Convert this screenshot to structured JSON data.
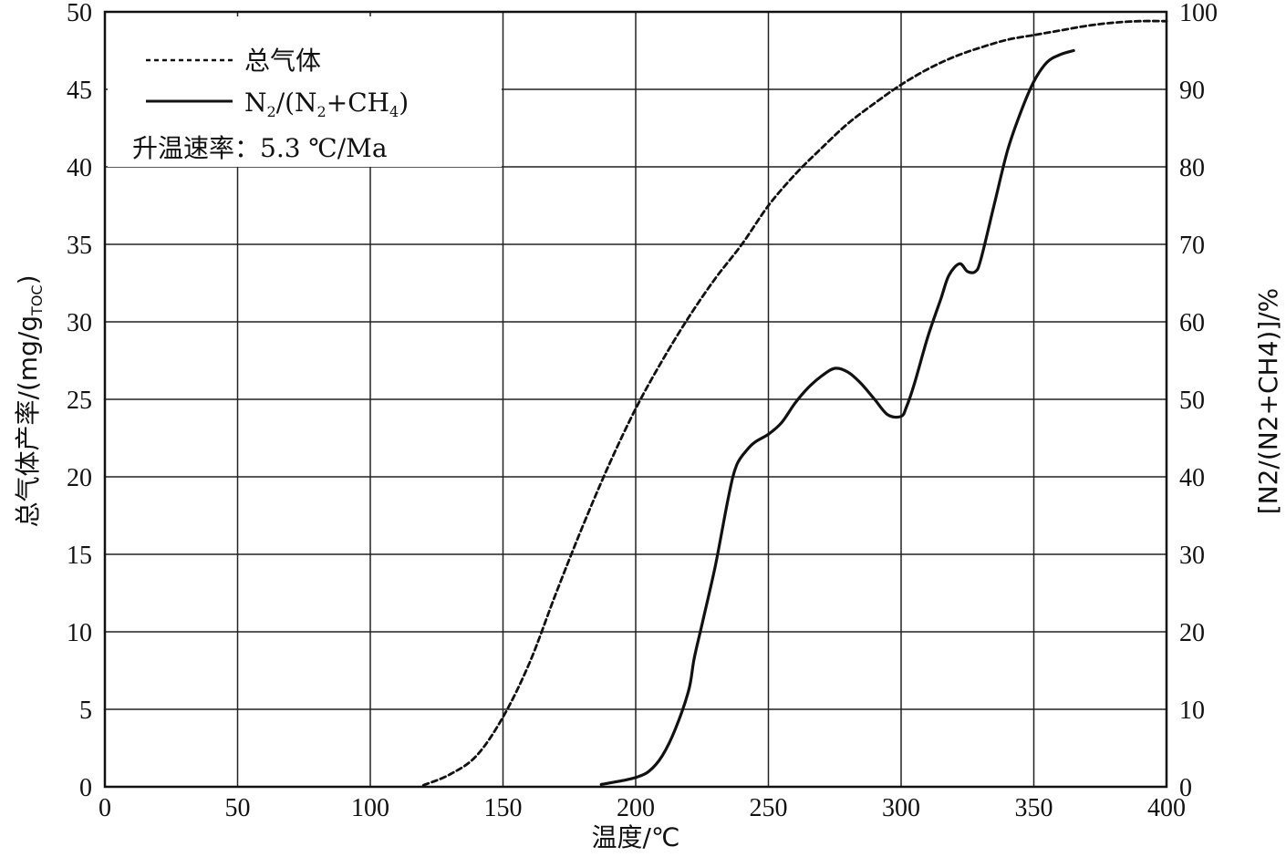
{
  "chart_data": {
    "type": "line",
    "xlabel": "温度/℃",
    "ylabel_left": "总气体产率/(mg/gTOC)",
    "ylabel_left_main": "总气体产率/(mg/g",
    "ylabel_left_sub": "TOC",
    "ylabel_left_close": ")",
    "ylabel_right": "[N2/(N2+CH4)]/%",
    "xlim": [
      0,
      400
    ],
    "ylim_left": [
      0,
      50
    ],
    "ylim_right": [
      0,
      100
    ],
    "x_ticks": [
      0,
      50,
      100,
      150,
      200,
      250,
      300,
      350,
      400
    ],
    "y_left_ticks": [
      0,
      5,
      10,
      15,
      20,
      25,
      30,
      35,
      40,
      45,
      50
    ],
    "y_right_ticks": [
      0,
      10,
      20,
      30,
      40,
      50,
      60,
      70,
      80,
      90,
      100
    ],
    "grid": true,
    "legend_position": "top-left",
    "annotation": "升温速率：5.3 ℃/Ma",
    "series": [
      {
        "name": "总气体",
        "axis": "left",
        "style": "dashed",
        "x": [
          120,
          130,
          140,
          150,
          160,
          170,
          180,
          190,
          200,
          210,
          220,
          230,
          240,
          250,
          260,
          270,
          280,
          290,
          300,
          310,
          320,
          330,
          340,
          350,
          360,
          370,
          380,
          390,
          400
        ],
        "y": [
          0.1,
          0.8,
          2.0,
          4.5,
          8.0,
          12.5,
          16.8,
          20.8,
          24.4,
          27.5,
          30.3,
          32.8,
          35.0,
          37.5,
          39.5,
          41.2,
          42.8,
          44.1,
          45.3,
          46.3,
          47.1,
          47.7,
          48.2,
          48.5,
          48.8,
          49.1,
          49.3,
          49.4,
          49.4
        ]
      },
      {
        "name": "N2/(N2+CH4)",
        "legend_label": {
          "n1": "N",
          "s1": "2",
          "mid": "/(N",
          "s2": "2",
          "mid2": "+CH",
          "s3": "4",
          "end": ")"
        },
        "axis": "right",
        "style": "solid",
        "x": [
          187,
          195,
          200,
          205,
          210,
          215,
          220,
          222,
          225,
          230,
          235,
          238,
          242,
          245,
          250,
          255,
          260,
          265,
          270,
          275,
          280,
          285,
          290,
          295,
          300,
          302,
          305,
          310,
          315,
          318,
          322,
          325,
          328,
          330,
          335,
          340,
          345,
          350,
          355,
          360,
          365
        ],
        "y": [
          0.3,
          0.8,
          1.2,
          2.0,
          4.0,
          7.5,
          12.5,
          16.5,
          21.0,
          28.5,
          37.5,
          41.5,
          43.5,
          44.5,
          45.5,
          47.0,
          49.5,
          51.5,
          53.0,
          54.0,
          53.5,
          52.0,
          50.0,
          48.0,
          47.8,
          49.0,
          52.0,
          58.0,
          63.0,
          66.0,
          67.5,
          66.5,
          66.5,
          68.0,
          75.0,
          82.0,
          87.0,
          91.0,
          93.5,
          94.5,
          95.0
        ]
      }
    ]
  }
}
